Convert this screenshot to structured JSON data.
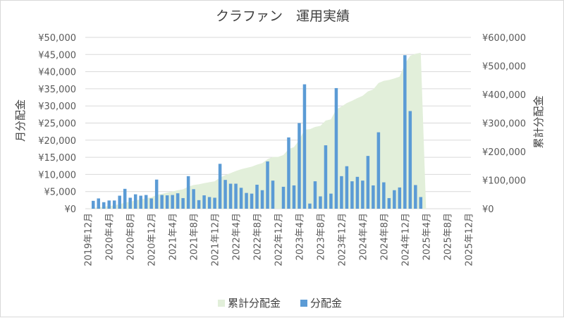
{
  "chart_data": {
    "type": "bar",
    "title": "クラファン　運用実績",
    "ylabel_left": "月分配金",
    "ylabel_right": "累計分配金",
    "ylim_left": [
      0,
      50000
    ],
    "ylim_right": [
      0,
      600000
    ],
    "yticks_left": [
      "¥0",
      "¥5,000",
      "¥10,000",
      "¥15,000",
      "¥20,000",
      "¥25,000",
      "¥30,000",
      "¥35,000",
      "¥40,000",
      "¥45,000",
      "¥50,000"
    ],
    "yticks_right": [
      "¥0",
      "¥100,000",
      "¥200,000",
      "¥300,000",
      "¥400,000",
      "¥500,000",
      "¥600,000"
    ],
    "x_tick_labels": [
      "2019年12月",
      "2020年4月",
      "2020年8月",
      "2020年12月",
      "2021年4月",
      "2021年8月",
      "2021年12月",
      "2022年4月",
      "2022年8月",
      "2022年12月",
      "2023年4月",
      "2023年8月",
      "2023年12月",
      "2024年4月",
      "2024年8月",
      "2024年12月",
      "2025年4月",
      "2025年8月",
      "2025年12月"
    ],
    "grid": true,
    "legend_position": "bottom",
    "colors": {
      "bar": "#5b9bd5",
      "area": "#e2efda",
      "grid": "#d9d9d9"
    },
    "series": [
      {
        "name": "分配金",
        "type": "bar",
        "axis": "left",
        "values": [
          0,
          2300,
          3000,
          1900,
          2400,
          2400,
          3800,
          5800,
          3200,
          4200,
          3800,
          4000,
          3000,
          8500,
          4000,
          3900,
          4000,
          4500,
          3100,
          9500,
          5700,
          2500,
          3900,
          3400,
          3200,
          13100,
          8400,
          7300,
          7300,
          6100,
          4600,
          4400,
          7000,
          5400,
          13800,
          8200,
          0,
          6400,
          20800,
          6800,
          25000,
          36300,
          1500,
          8000,
          3600,
          18500,
          4400,
          35200,
          9500,
          12400,
          8000,
          9300,
          8200,
          15400,
          6800,
          22300,
          7700,
          3100,
          5400,
          6200,
          44800,
          28500,
          6900,
          3400,
          0,
          0,
          0,
          0,
          0,
          0,
          0,
          0,
          0
        ]
      },
      {
        "name": "累計分配金",
        "type": "area",
        "axis": "right",
        "values": [
          0,
          2300,
          5300,
          7200,
          9600,
          12000,
          15800,
          21600,
          24800,
          29000,
          32800,
          36800,
          39800,
          48300,
          52300,
          56200,
          60200,
          64700,
          67800,
          77300,
          83000,
          85500,
          89400,
          92800,
          96000,
          109100,
          117500,
          124800,
          132100,
          138200,
          142800,
          147200,
          154200,
          159600,
          173400,
          181600,
          181600,
          188000,
          208800,
          215600,
          240600,
          276900,
          278400,
          286400,
          290000,
          308500,
          312900,
          348100,
          357600,
          370000,
          378000,
          387300,
          395500,
          410900,
          417700,
          440000,
          447700,
          450800,
          456200,
          462400,
          507200,
          535700,
          542600,
          546000,
          0,
          0,
          0,
          0,
          0,
          0,
          0,
          0,
          0
        ]
      }
    ]
  }
}
